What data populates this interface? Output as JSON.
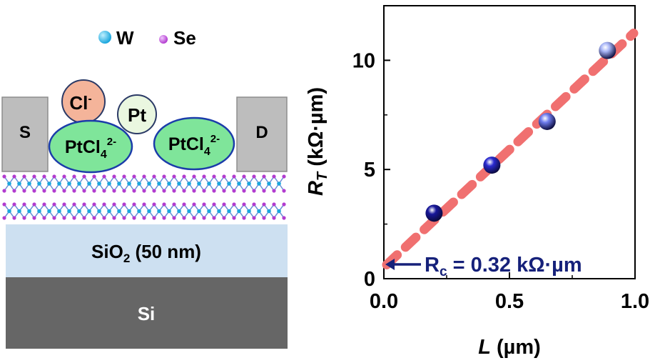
{
  "legend": {
    "w_label": "W",
    "se_label": "Se",
    "w_color": "#1aa6dd",
    "se_color": "#b23ccf"
  },
  "device": {
    "source_label": "S",
    "drain_label": "D",
    "cl_label": "Cl",
    "cl_charge": "-",
    "pt_label": "Pt",
    "ptcl_base": "PtCl",
    "ptcl_sub": "4",
    "ptcl_sup": "2-",
    "sio2_base": "SiO",
    "sio2_sub": "2",
    "sio2_rest": " (50 nm)",
    "si_label": "Si"
  },
  "chart_data": {
    "type": "scatter",
    "xlabel_var": "L",
    "xlabel_unit": " (µm)",
    "ylabel_var": "R",
    "ylabel_sub": "T",
    "ylabel_unit": " (kΩ·µm)",
    "xlim": [
      0,
      1.0
    ],
    "ylim": [
      0,
      12.5
    ],
    "xticks": [
      0.0,
      0.5,
      1.0
    ],
    "xtick_labels": [
      "0.0",
      "0.5",
      "1.0"
    ],
    "yticks": [
      0,
      5,
      10
    ],
    "ytick_labels": [
      "0",
      "5",
      "10"
    ],
    "points": [
      {
        "x": 0.2,
        "y": 3.0,
        "color": "#17179a"
      },
      {
        "x": 0.43,
        "y": 5.2,
        "color": "#2a2ad0"
      },
      {
        "x": 0.65,
        "y": 7.2,
        "color": "#6f7dee"
      },
      {
        "x": 0.89,
        "y": 10.45,
        "color": "#a9b6f7"
      }
    ],
    "fit": {
      "intercept": 0.64,
      "slope": 10.6,
      "color": "#f07070"
    },
    "annotation": {
      "prefix": "R",
      "sub": "c",
      "text": " = 0.32 kΩ·µm",
      "color": "#16217a"
    }
  }
}
